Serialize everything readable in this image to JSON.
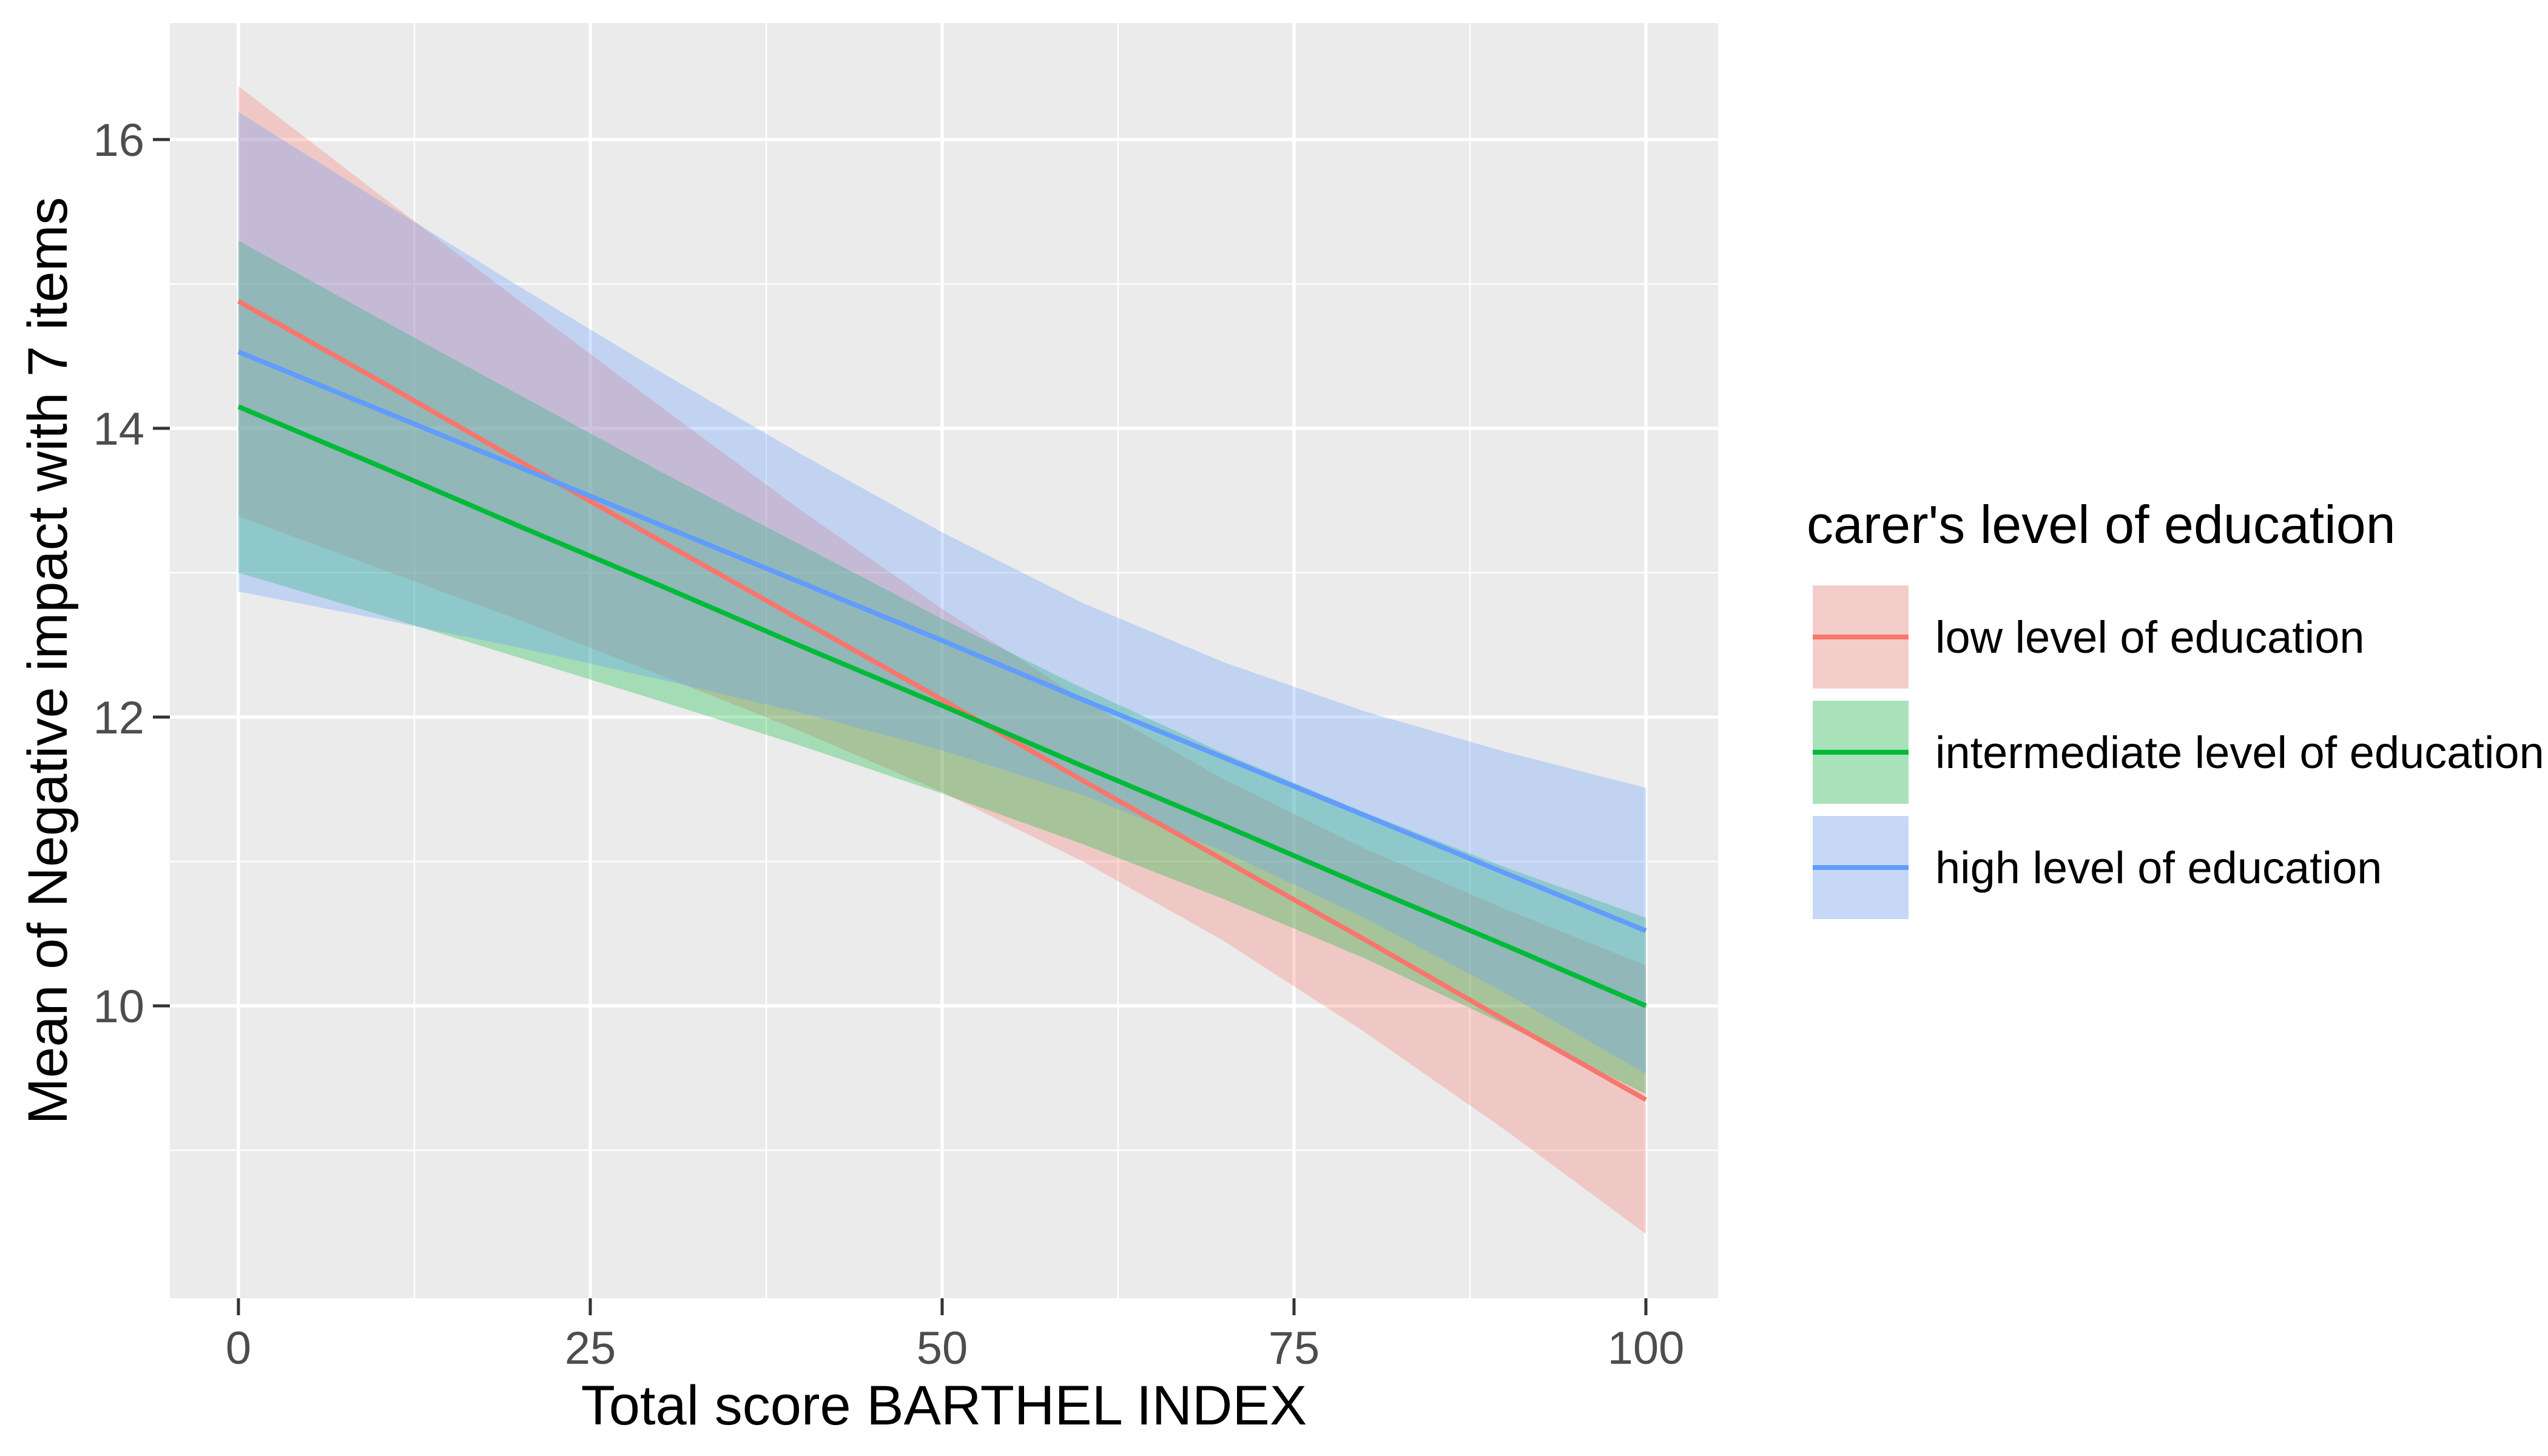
{
  "figure": {
    "background": "#FFFFFF",
    "panel_background": "#EBEBEB",
    "grid_color": "#FFFFFF",
    "tick_mark_color": "#333333",
    "tick_label_color": "#4D4D4D"
  },
  "chart_data": {
    "type": "line",
    "title": "",
    "xlabel": "Total score BARTHEL INDEX",
    "ylabel": "Mean of Negative impact with 7 items",
    "legend_title": "carer's level of education",
    "legend_position": "right",
    "grid": "on",
    "xlim": [
      -5,
      105
    ],
    "ylim": [
      8.0,
      16.8
    ],
    "x_tick_labels": [
      "0",
      "25",
      "50",
      "75",
      "100"
    ],
    "x_ticks": [
      0,
      25,
      50,
      75,
      100
    ],
    "x_minor_ticks": [
      12.5,
      37.5,
      62.5,
      87.5
    ],
    "y_tick_labels": [
      "10",
      "12",
      "14",
      "16"
    ],
    "y_ticks": [
      10,
      12,
      14,
      16
    ],
    "y_minor_ticks": [
      9,
      11,
      13,
      15
    ],
    "x": [
      0,
      10,
      20,
      30,
      40,
      50,
      60,
      70,
      80,
      90,
      100
    ],
    "series": [
      {
        "name": "low level of education",
        "color": "#F8766D",
        "band_opacity": 0.3,
        "values": [
          14.88,
          14.33,
          13.77,
          13.22,
          12.67,
          12.12,
          11.56,
          11.01,
          10.46,
          9.9,
          9.35
        ],
        "ci_hi": [
          16.37,
          15.62,
          14.88,
          14.15,
          13.43,
          12.75,
          12.12,
          11.57,
          11.09,
          10.67,
          10.28
        ],
        "ci_lo": [
          13.39,
          13.03,
          12.67,
          12.29,
          11.9,
          11.48,
          11.0,
          10.45,
          9.82,
          9.14,
          8.42
        ]
      },
      {
        "name": "intermediate level of education",
        "color": "#00BA38",
        "band_opacity": 0.3,
        "values": [
          14.15,
          13.74,
          13.32,
          12.91,
          12.49,
          12.08,
          11.66,
          11.25,
          10.83,
          10.42,
          10.0
        ],
        "ci_hi": [
          15.3,
          14.76,
          14.23,
          13.7,
          13.19,
          12.68,
          12.2,
          11.75,
          11.34,
          10.96,
          10.61
        ],
        "ci_lo": [
          13.0,
          12.71,
          12.41,
          12.11,
          11.8,
          11.47,
          11.12,
          10.74,
          10.33,
          9.87,
          9.39
        ]
      },
      {
        "name": "high level of education",
        "color": "#619CFF",
        "band_opacity": 0.3,
        "values": [
          14.53,
          14.13,
          13.73,
          13.33,
          12.93,
          12.53,
          12.12,
          11.72,
          11.32,
          10.92,
          10.52
        ],
        "ci_hi": [
          16.19,
          15.58,
          14.98,
          14.39,
          13.82,
          13.28,
          12.79,
          12.38,
          12.04,
          11.76,
          11.51
        ],
        "ci_lo": [
          12.87,
          12.68,
          12.48,
          12.26,
          12.03,
          11.77,
          11.46,
          11.07,
          10.61,
          10.09,
          9.53
        ]
      }
    ]
  }
}
